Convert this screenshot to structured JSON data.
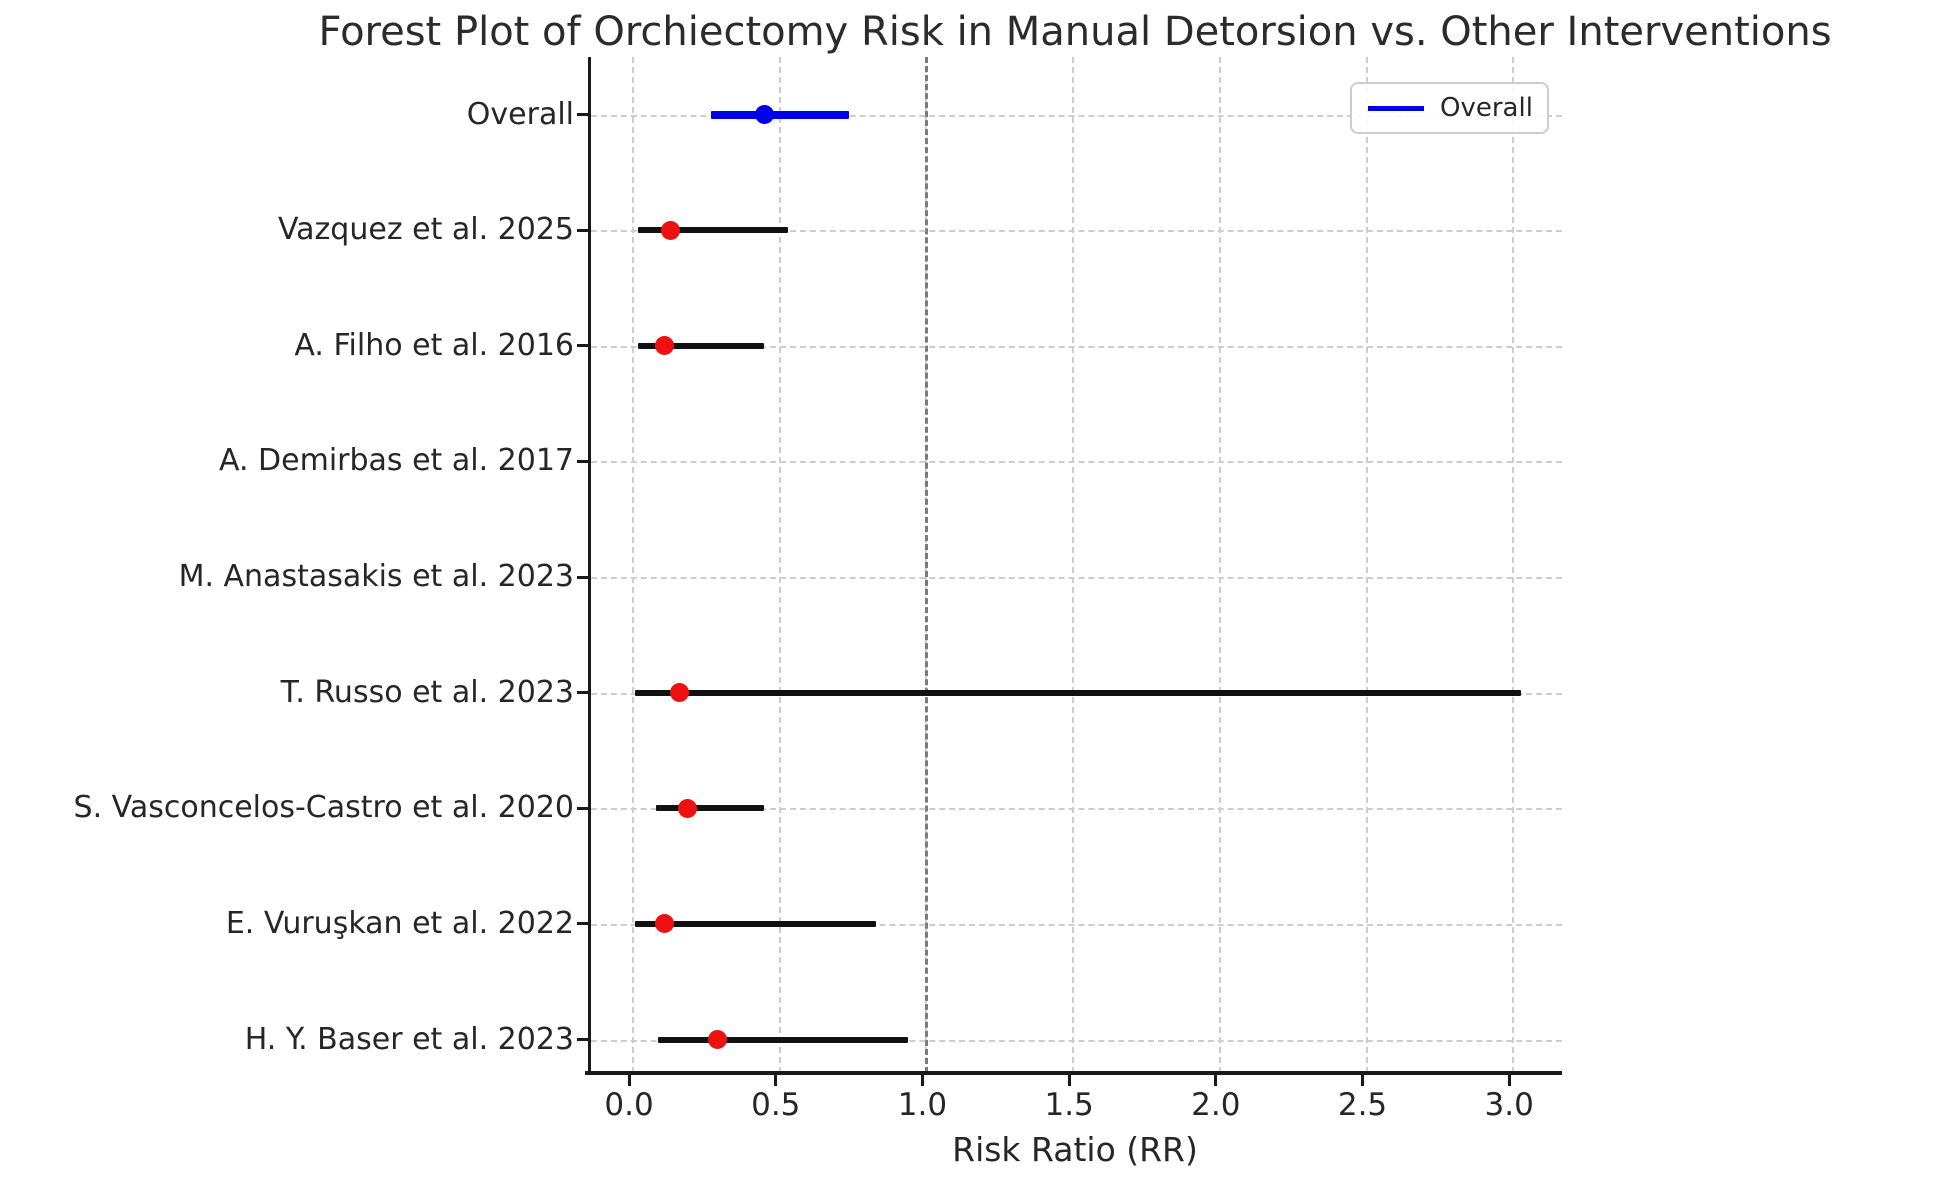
{
  "figure": {
    "title": "Forest Plot of Orchiectomy Risk in Manual Detorsion vs. Other Interventions",
    "xlabel": "Risk Ratio (RR)"
  },
  "chart_data": {
    "type": "scatter",
    "subtype": "forest-plot",
    "title": "Forest Plot of Orchiectomy Risk in Manual Detorsion vs. Other Interventions",
    "xlabel": "Risk Ratio (RR)",
    "ylabel": "",
    "xlim": [
      -0.14,
      3.18
    ],
    "x_ticks": [
      0.0,
      0.5,
      1.0,
      1.5,
      2.0,
      2.5,
      3.0
    ],
    "x_tick_labels": [
      "0.0",
      "0.5",
      "1.0",
      "1.5",
      "2.0",
      "2.5",
      "3.0"
    ],
    "reference_line_x": 1.0,
    "grid": true,
    "legend": {
      "label": "Overall",
      "position": "upper right"
    },
    "studies": [
      {
        "label": "Overall",
        "rr": 0.45,
        "ci_low": 0.27,
        "ci_high": 0.74,
        "type": "overall"
      },
      {
        "label": "Vazquez et al. 2025",
        "rr": 0.13,
        "ci_low": 0.02,
        "ci_high": 0.53,
        "type": "study"
      },
      {
        "label": "A. Filho et al. 2016",
        "rr": 0.11,
        "ci_low": 0.02,
        "ci_high": 0.45,
        "type": "study"
      },
      {
        "label": "A. Demirbas et al. 2017",
        "rr": null,
        "ci_low": null,
        "ci_high": null,
        "type": "study"
      },
      {
        "label": "M. Anastasakis et al. 2023",
        "rr": null,
        "ci_low": null,
        "ci_high": null,
        "type": "study"
      },
      {
        "label": "T. Russo et al. 2023",
        "rr": 0.16,
        "ci_low": 0.01,
        "ci_high": 3.03,
        "type": "study"
      },
      {
        "label": "S. Vasconcelos-Castro et al. 2020",
        "rr": 0.19,
        "ci_low": 0.08,
        "ci_high": 0.45,
        "type": "study"
      },
      {
        "label": "E. Vuruşkan et al. 2022",
        "rr": 0.11,
        "ci_low": 0.01,
        "ci_high": 0.83,
        "type": "study"
      },
      {
        "label": "H. Y. Baser et al. 2023",
        "rr": 0.29,
        "ci_low": 0.09,
        "ci_high": 0.94,
        "type": "study"
      }
    ],
    "colors": {
      "overall": "#0000e6",
      "study_marker": "#ee1111",
      "ci_line": "#111111",
      "reference_line": "#7b7b7b",
      "grid": "#cdcdcd",
      "text": "#262626"
    }
  }
}
